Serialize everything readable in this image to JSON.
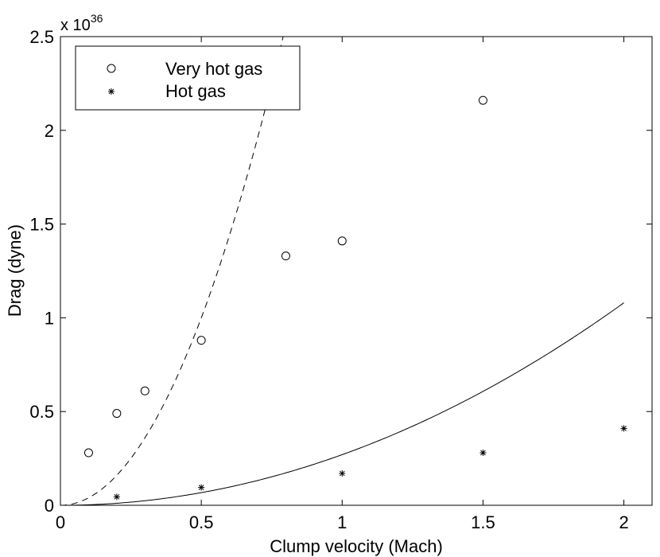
{
  "chart_data": {
    "type": "scatter",
    "title": "",
    "xlabel": "Clump velocity (Mach)",
    "ylabel": "Drag (dyne)",
    "y_multiplier": "x 10",
    "y_exponent": "36",
    "xlim": [
      0,
      2.1
    ],
    "ylim": [
      0,
      2.5
    ],
    "x_ticks": [
      0,
      0.5,
      1,
      1.5,
      2
    ],
    "x_tick_labels": [
      "0",
      "0.5",
      "1",
      "1.5",
      "2"
    ],
    "y_ticks": [
      0,
      0.5,
      1,
      1.5,
      2,
      2.5
    ],
    "y_tick_labels": [
      "0",
      "0.5",
      "1",
      "1.5",
      "2",
      "2.5"
    ],
    "grid": false,
    "legend_position": "top-left",
    "series": [
      {
        "name": "Very hot gas",
        "marker": "circle",
        "x": [
          0.1,
          0.2,
          0.3,
          0.5,
          0.8,
          1.0,
          1.5
        ],
        "y": [
          0.28,
          0.49,
          0.61,
          0.88,
          1.33,
          1.41,
          2.16
        ]
      },
      {
        "name": "Hot gas",
        "marker": "asterisk",
        "x": [
          0.2,
          0.5,
          1.0,
          1.5,
          2.0
        ],
        "y": [
          0.045,
          0.095,
          0.17,
          0.28,
          0.41
        ]
      }
    ],
    "curves": [
      {
        "style": "dashed",
        "coefficient": 4.0,
        "power": 2
      },
      {
        "style": "solid",
        "coefficient": 0.27,
        "power": 2
      }
    ]
  }
}
